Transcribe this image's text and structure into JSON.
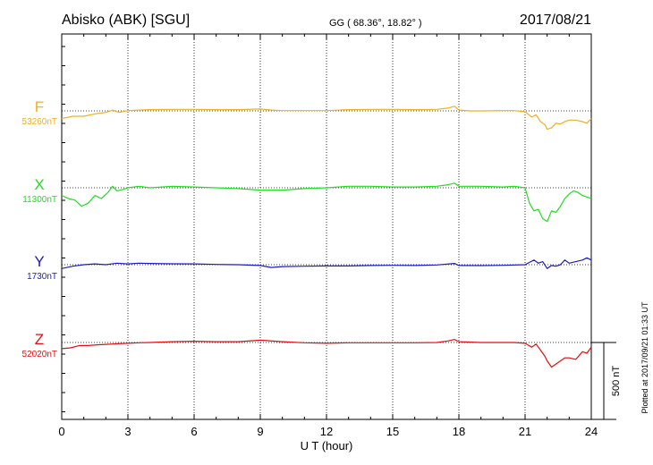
{
  "header": {
    "station": "Abisko (ABK)  [SGU]",
    "coords": "GG ( 68.36°,  18.82° )",
    "date": "2017/08/21"
  },
  "footer": {
    "plotted": "Plotted at 2017/09/21 01:33 UT"
  },
  "chart_data": {
    "type": "line",
    "xlabel": "U T (hour)",
    "xlim": [
      0,
      24
    ],
    "xticks": [
      0,
      3,
      6,
      9,
      12,
      15,
      18,
      21,
      24
    ],
    "xtick_labels": [
      "0",
      "3",
      "6",
      "9",
      "12",
      "15",
      "18",
      "21",
      "24"
    ],
    "grid": true,
    "scale_bar": {
      "label": "500 nT",
      "value": 500,
      "unit": "nT"
    },
    "series": [
      {
        "name": "F",
        "baseline_label": "53260nT",
        "baseline": 53260,
        "color": "#f0b020",
        "x": [
          0,
          0.5,
          1,
          1.5,
          2,
          2.3,
          2.6,
          3,
          3.5,
          4,
          5,
          6,
          7,
          8,
          9,
          9.5,
          10,
          11,
          12,
          13,
          14,
          15,
          16,
          17,
          17.5,
          17.8,
          18,
          18.5,
          19,
          20,
          20.5,
          21,
          21.3,
          21.5,
          21.7,
          21.9,
          22,
          22.2,
          22.4,
          22.6,
          22.8,
          23,
          23.3,
          23.6,
          23.8,
          24
        ],
        "values": [
          53210,
          53225,
          53225,
          53240,
          53250,
          53265,
          53250,
          53262,
          53265,
          53268,
          53270,
          53270,
          53268,
          53268,
          53272,
          53265,
          53262,
          53262,
          53262,
          53268,
          53270,
          53270,
          53268,
          53270,
          53278,
          53290,
          53265,
          53260,
          53260,
          53262,
          53262,
          53255,
          53220,
          53235,
          53190,
          53170,
          53140,
          53150,
          53180,
          53175,
          53190,
          53200,
          53200,
          53190,
          53180,
          53210
        ]
      },
      {
        "name": "X",
        "baseline_label": "11300nT",
        "baseline": 11300,
        "color": "#22dd22",
        "x": [
          0,
          0.3,
          0.6,
          0.9,
          1.2,
          1.5,
          1.8,
          2.1,
          2.3,
          2.5,
          2.8,
          3,
          3.5,
          4,
          5,
          6,
          7,
          8,
          9,
          10,
          11,
          12,
          13,
          14,
          15,
          16,
          17,
          17.5,
          17.8,
          18,
          19,
          20,
          20.5,
          21,
          21.2,
          21.4,
          21.6,
          21.8,
          22,
          22.2,
          22.4,
          22.6,
          22.8,
          23,
          23.2,
          23.4,
          23.6,
          23.8,
          24
        ],
        "values": [
          11250,
          11230,
          11220,
          11180,
          11200,
          11250,
          11230,
          11270,
          11310,
          11280,
          11290,
          11300,
          11310,
          11300,
          11310,
          11305,
          11300,
          11295,
          11285,
          11285,
          11295,
          11300,
          11310,
          11310,
          11305,
          11305,
          11310,
          11320,
          11330,
          11310,
          11310,
          11305,
          11310,
          11300,
          11200,
          11150,
          11160,
          11100,
          11080,
          11150,
          11140,
          11180,
          11230,
          11260,
          11280,
          11270,
          11250,
          11240,
          11230
        ]
      },
      {
        "name": "Y",
        "baseline_label": "1730nT",
        "baseline": 1730,
        "color": "#1a1acc",
        "x": [
          0,
          0.5,
          1,
          1.5,
          2,
          2.5,
          3,
          3.5,
          4,
          5,
          6,
          7,
          8,
          9,
          9.5,
          10,
          11,
          12,
          13,
          14,
          15,
          16,
          17,
          17.8,
          18,
          19,
          20,
          21,
          21.2,
          21.4,
          21.6,
          21.8,
          22,
          22.2,
          22.4,
          22.6,
          22.8,
          23,
          23.3,
          23.6,
          23.8,
          24
        ],
        "values": [
          1705,
          1720,
          1730,
          1735,
          1730,
          1740,
          1735,
          1740,
          1738,
          1736,
          1735,
          1732,
          1730,
          1725,
          1712,
          1718,
          1720,
          1722,
          1722,
          1725,
          1726,
          1725,
          1728,
          1738,
          1725,
          1724,
          1726,
          1730,
          1745,
          1760,
          1740,
          1750,
          1705,
          1725,
          1720,
          1730,
          1760,
          1740,
          1750,
          1760,
          1775,
          1760
        ]
      },
      {
        "name": "Z",
        "baseline_label": "52020nT",
        "baseline": 52020,
        "color": "#dd1111",
        "x": [
          0,
          0.4,
          0.8,
          1.2,
          1.6,
          2,
          2.5,
          3,
          3.5,
          4,
          5,
          6,
          7,
          8,
          9,
          10,
          11,
          12,
          13,
          14,
          15,
          16,
          17,
          17.5,
          17.8,
          18,
          19,
          20,
          20.5,
          21,
          21.3,
          21.5,
          21.7,
          21.9,
          22,
          22.2,
          22.4,
          22.6,
          22.8,
          23,
          23.3,
          23.6,
          23.8,
          24
        ],
        "values": [
          51980,
          51985,
          52000,
          52000,
          52005,
          52008,
          52012,
          52015,
          52018,
          52020,
          52025,
          52028,
          52025,
          52025,
          52035,
          52025,
          52018,
          52015,
          52018,
          52018,
          52018,
          52018,
          52020,
          52030,
          52040,
          52025,
          52020,
          52020,
          52020,
          52015,
          51990,
          52010,
          51970,
          51930,
          51900,
          51860,
          51880,
          51900,
          51920,
          51920,
          51910,
          51960,
          51950,
          51990
        ]
      }
    ]
  }
}
